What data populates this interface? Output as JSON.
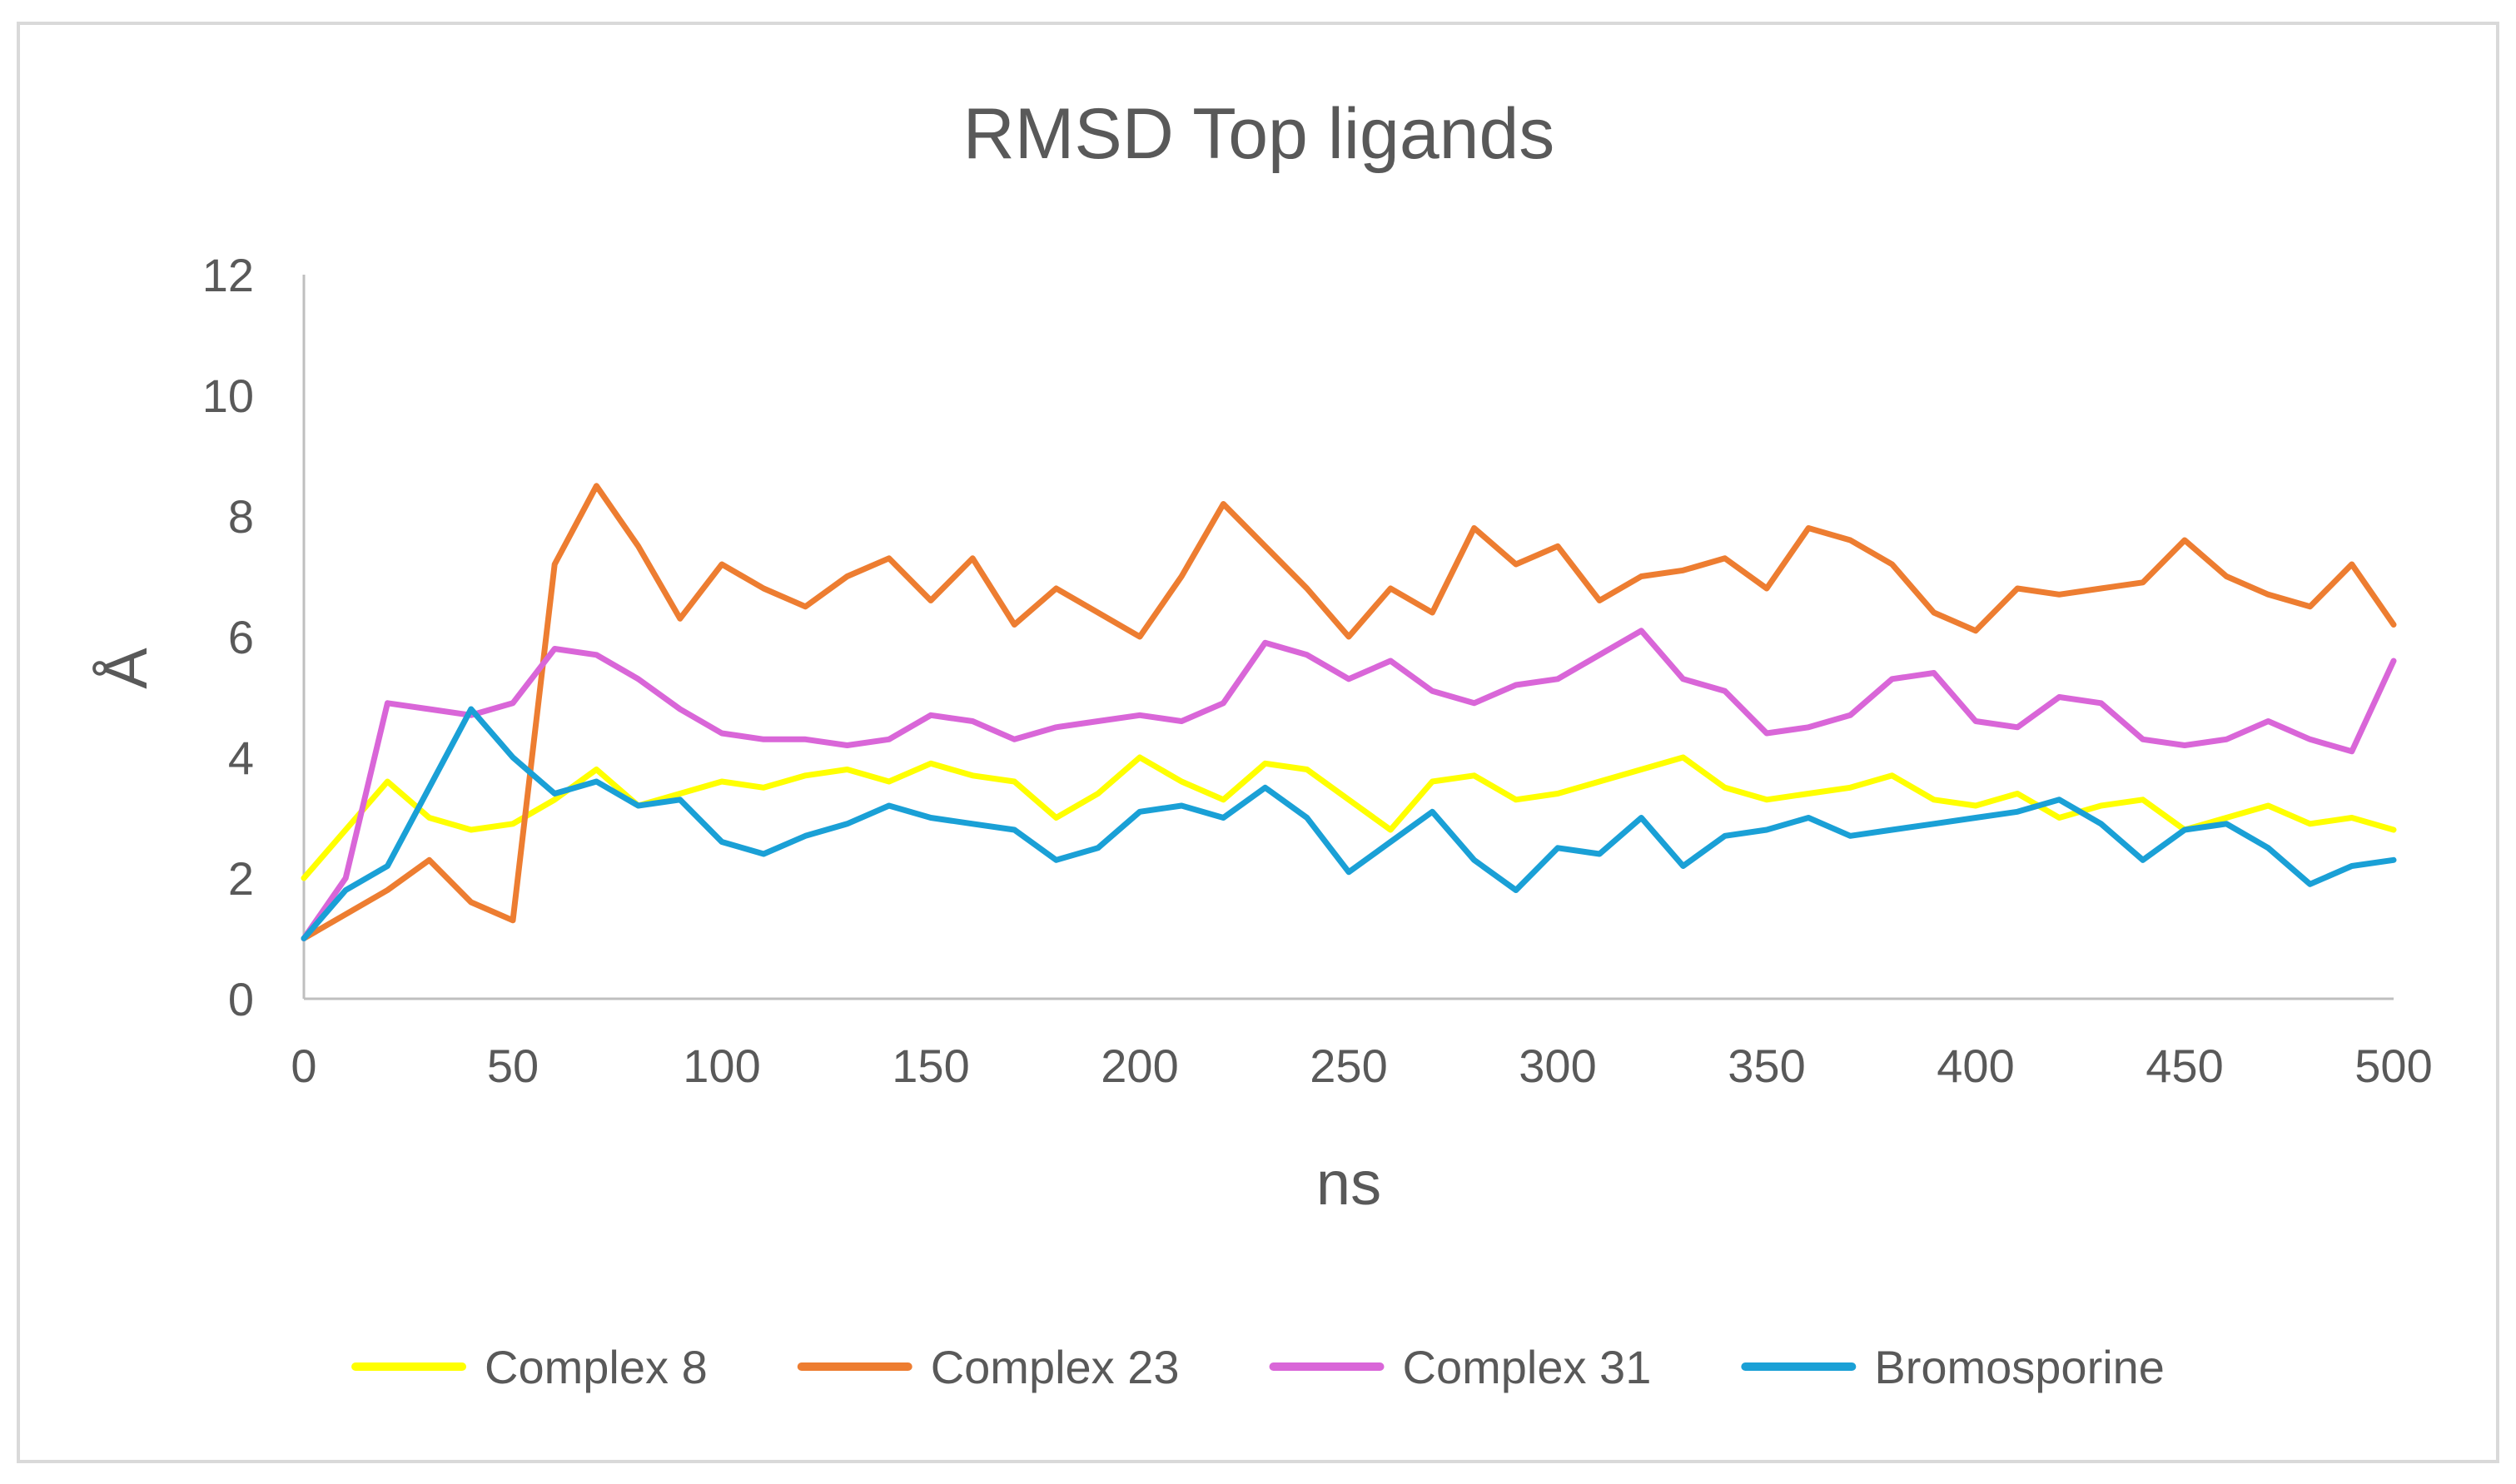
{
  "chart_data": {
    "type": "line",
    "title": "RMSD Top ligands",
    "xlabel": "ns",
    "ylabel": "Å",
    "xlim": [
      0,
      500
    ],
    "ylim": [
      0,
      12
    ],
    "xticks": [
      0,
      50,
      100,
      150,
      200,
      250,
      300,
      350,
      400,
      450,
      500
    ],
    "yticks": [
      0,
      2,
      4,
      6,
      8,
      10,
      12
    ],
    "xtick_labels": [
      "0",
      "50",
      "100",
      "150",
      "200",
      "250",
      "300",
      "350",
      "400",
      "450",
      "500"
    ],
    "ytick_labels": [
      "0",
      "2",
      "4",
      "6",
      "8",
      "10",
      "12"
    ],
    "grid": false,
    "legend_position": "bottom",
    "x": [
      0,
      10,
      20,
      30,
      40,
      50,
      60,
      70,
      80,
      90,
      100,
      110,
      120,
      130,
      140,
      150,
      160,
      170,
      180,
      190,
      200,
      210,
      220,
      230,
      240,
      250,
      260,
      270,
      280,
      290,
      300,
      310,
      320,
      330,
      340,
      350,
      360,
      370,
      380,
      390,
      400,
      410,
      420,
      430,
      440,
      450,
      460,
      470,
      480,
      490,
      500
    ],
    "series": [
      {
        "name": "Complex 8",
        "color": "#FFFF00",
        "values": [
          2.0,
          2.8,
          3.6,
          3.0,
          2.8,
          2.9,
          3.3,
          3.8,
          3.2,
          3.4,
          3.6,
          3.5,
          3.7,
          3.8,
          3.6,
          3.9,
          3.7,
          3.6,
          3.0,
          3.4,
          4.0,
          3.6,
          3.3,
          3.9,
          3.8,
          3.3,
          2.8,
          3.6,
          3.7,
          3.3,
          3.4,
          3.6,
          3.8,
          4.0,
          3.5,
          3.3,
          3.4,
          3.5,
          3.7,
          3.3,
          3.2,
          3.4,
          3.0,
          3.2,
          3.3,
          2.8,
          3.0,
          3.2,
          2.9,
          3.0,
          2.8
        ]
      },
      {
        "name": "Complex 23",
        "color": "#ED7D31",
        "values": [
          1.0,
          1.4,
          1.8,
          2.3,
          1.6,
          1.3,
          7.2,
          8.5,
          7.5,
          6.3,
          7.2,
          6.8,
          6.5,
          7.0,
          7.3,
          6.6,
          7.3,
          6.2,
          6.8,
          6.4,
          6.0,
          7.0,
          8.2,
          7.5,
          6.8,
          6.0,
          6.8,
          6.4,
          7.8,
          7.2,
          7.5,
          6.6,
          7.0,
          7.1,
          7.3,
          6.8,
          7.8,
          7.6,
          7.2,
          6.4,
          6.1,
          6.8,
          6.7,
          6.8,
          6.9,
          7.6,
          7.0,
          6.7,
          6.5,
          7.2,
          6.2
        ]
      },
      {
        "name": "Complex 31",
        "color": "#D966D8",
        "values": [
          1.0,
          2.0,
          4.9,
          4.8,
          4.7,
          4.9,
          5.8,
          5.7,
          5.3,
          4.8,
          4.4,
          4.3,
          4.3,
          4.2,
          4.3,
          4.7,
          4.6,
          4.3,
          4.5,
          4.6,
          4.7,
          4.6,
          4.9,
          5.9,
          5.7,
          5.3,
          5.6,
          5.1,
          4.9,
          5.2,
          5.3,
          5.7,
          6.1,
          5.3,
          5.1,
          4.4,
          4.5,
          4.7,
          5.3,
          5.4,
          4.6,
          4.5,
          5.0,
          4.9,
          4.3,
          4.2,
          4.3,
          4.6,
          4.3,
          4.1,
          5.6
        ]
      },
      {
        "name": "Bromosporine",
        "color": "#1AA0D6",
        "values": [
          1.0,
          1.8,
          2.2,
          3.5,
          4.8,
          4.0,
          3.4,
          3.6,
          3.2,
          3.3,
          2.6,
          2.4,
          2.7,
          2.9,
          3.2,
          3.0,
          2.9,
          2.8,
          2.3,
          2.5,
          3.1,
          3.2,
          3.0,
          3.5,
          3.0,
          2.1,
          2.6,
          3.1,
          2.3,
          1.8,
          2.5,
          2.4,
          3.0,
          2.2,
          2.7,
          2.8,
          3.0,
          2.7,
          2.8,
          2.9,
          3.0,
          3.1,
          3.3,
          2.9,
          2.3,
          2.8,
          2.9,
          2.5,
          1.9,
          2.2,
          2.3
        ]
      }
    ]
  }
}
